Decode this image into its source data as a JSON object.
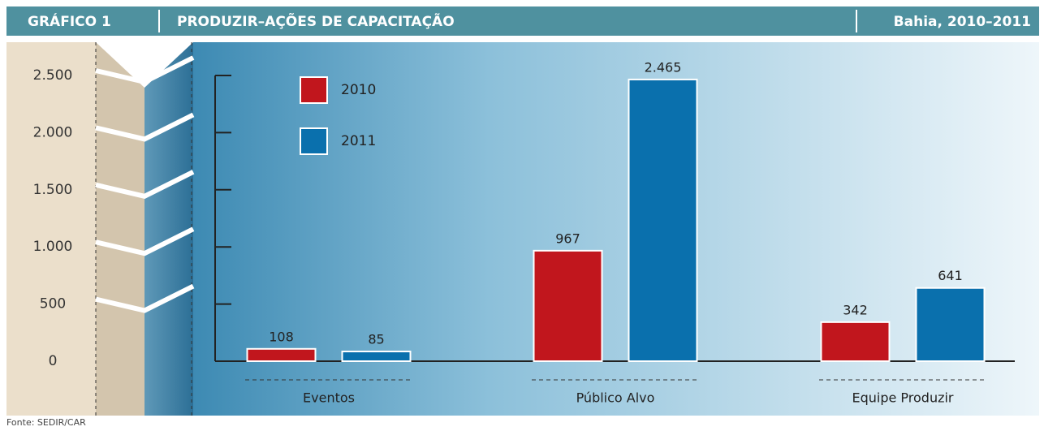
{
  "header": {
    "label": "GRÁFICO 1",
    "title": "PRODUZIR–AÇÕES DE CAPACITAÇÃO",
    "scope": "Bahia, 2010–2011"
  },
  "chart_data": {
    "type": "bar",
    "categories": [
      "Eventos",
      "Público Alvo",
      "Equipe Produzir"
    ],
    "series": [
      {
        "name": "2010",
        "color": "#c1161d",
        "values": [
          108,
          967,
          342
        ]
      },
      {
        "name": "2011",
        "color": "#0a70ad",
        "values": [
          85,
          2465,
          641
        ],
        "value_labels": [
          "85",
          "2.465",
          "641"
        ]
      }
    ],
    "ylim": [
      0,
      2500
    ],
    "yticks": [
      0,
      500,
      {
        "value": 1000,
        "label": "1.000"
      },
      {
        "value": 1500,
        "label": "1.500"
      },
      {
        "value": 2000,
        "label": "2.000"
      },
      {
        "value": 2500,
        "label": "2.500"
      }
    ]
  },
  "footer": {
    "source": "Fonte: SEDIR/CAR"
  }
}
